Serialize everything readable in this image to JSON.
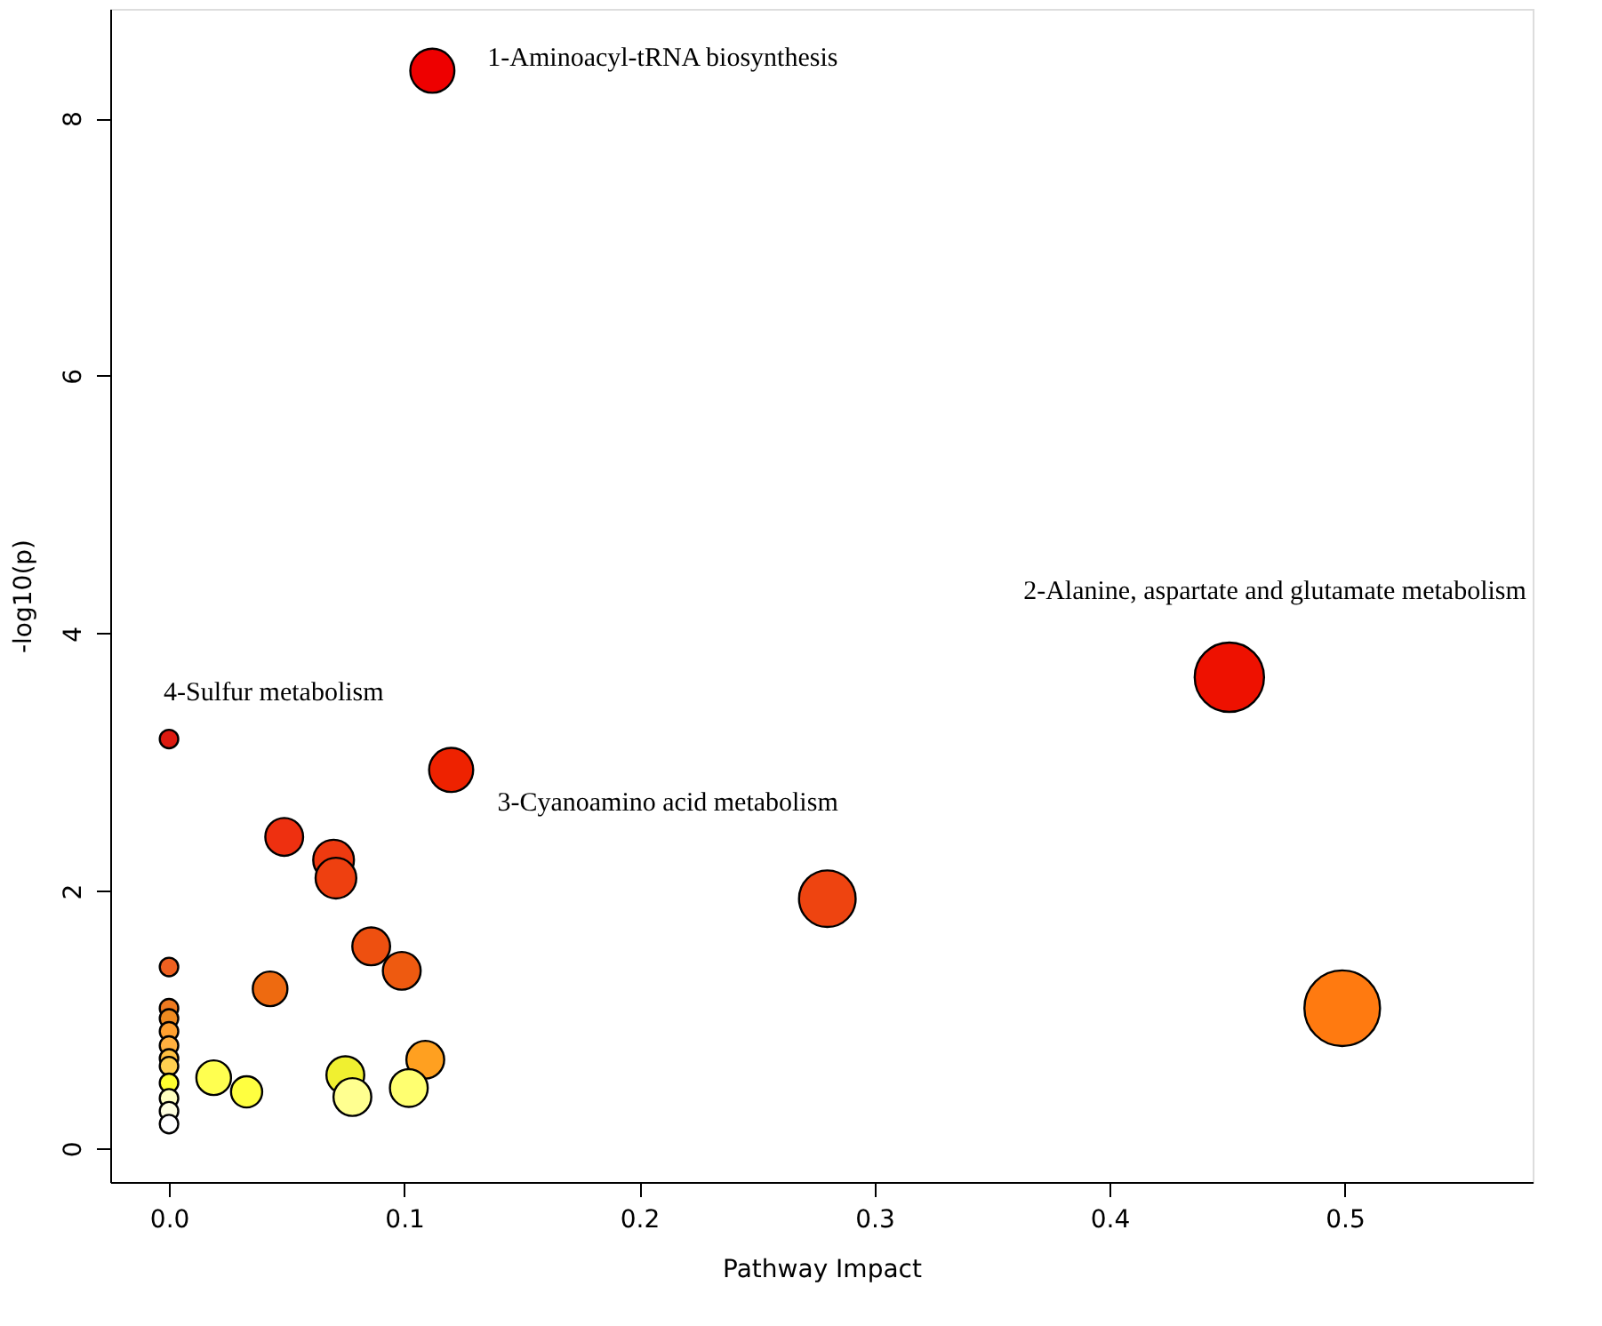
{
  "chart_data": {
    "type": "bubble",
    "xlabel": "Pathway Impact",
    "ylabel": "-log10(p)",
    "x": [
      0.112,
      0.451,
      0.12,
      0.0,
      0.049,
      0.07,
      0.071,
      0.28,
      0.086,
      0.099,
      0.043,
      0.499,
      0.109,
      0.075,
      0.078,
      0.102,
      0.019,
      0.033,
      0.0,
      0.0,
      0.0,
      0.0,
      0.0,
      0.0,
      0.0,
      0.0,
      0.0,
      0.0,
      0.0
    ],
    "values": [
      8.37,
      3.66,
      2.94,
      3.18,
      2.42,
      2.24,
      2.1,
      1.94,
      1.57,
      1.38,
      1.24,
      1.09,
      0.69,
      0.57,
      0.4,
      0.47,
      0.55,
      0.44,
      1.41,
      1.09,
      1.01,
      0.91,
      0.8,
      0.7,
      0.64,
      0.51,
      0.39,
      0.29,
      0.19
    ],
    "sizes": [
      0.34,
      0.84,
      0.34,
      0.06,
      0.25,
      0.29,
      0.29,
      0.56,
      0.25,
      0.25,
      0.21,
      1.0,
      0.25,
      0.25,
      0.25,
      0.25,
      0.21,
      0.17,
      0.06,
      0.06,
      0.06,
      0.06,
      0.06,
      0.06,
      0.06,
      0.06,
      0.06,
      0.06,
      0.06
    ],
    "colors": [
      "#ee0000",
      "#ee1100",
      "#ee2200",
      "#dd1a10",
      "#ee3010",
      "#ee3a10",
      "#ee4010",
      "#ee4410",
      "#ee5010",
      "#ee5a10",
      "#ee6a10",
      "#ff7a10",
      "#ffa020",
      "#f0f030",
      "#ffff90",
      "#ffff70",
      "#ffff50",
      "#ffff40",
      "#ee6020",
      "#ee7a20",
      "#ee8a20",
      "#ffa030",
      "#ffb040",
      "#ffc040",
      "#ffd050",
      "#ffff30",
      "#ffffc0",
      "#ffffe0",
      "#ffffff"
    ],
    "xlim": [
      -0.025,
      0.58
    ],
    "ylim": [
      -0.26,
      8.85
    ],
    "xticks": [
      {
        "value": 0,
        "label": "0.0"
      },
      0.1,
      0.2,
      0.3,
      0.4,
      0.5
    ],
    "yticks": [
      0,
      2,
      4,
      6,
      8
    ],
    "grid": false,
    "annotations": [
      {
        "text": "1-Aminoacyl-tRNA biosynthesis",
        "x": 0.112,
        "y": 8.37
      },
      {
        "text": "2-Alanine, aspartate and  glutamate metabolism",
        "x": 0.451,
        "y": 3.66
      },
      {
        "text": "3-Cyanoamino acid metabolism",
        "x": 0.12,
        "y": 2.94
      },
      {
        "text": "4-Sulfur metabolism",
        "x": 0.0,
        "y": 3.18
      }
    ]
  }
}
